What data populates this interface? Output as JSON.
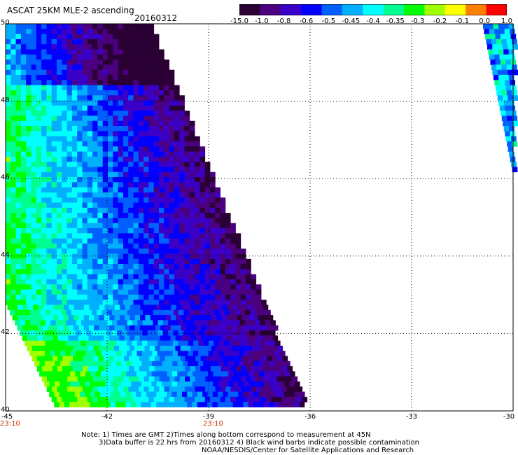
{
  "header": {
    "title": "ASCAT 25KM MLE-2 ascending",
    "date": "20160312"
  },
  "colorbar": {
    "labels": [
      "-15.0",
      "-1.0",
      "-0.8",
      "-0.6",
      "-0.5",
      "-0.45",
      "-0.4",
      "-0.35",
      "-0.3",
      "-0.2",
      "-0.1",
      "0.0",
      "1.0"
    ],
    "colors": [
      "#2a0035",
      "#4b0080",
      "#3a00c8",
      "#0000ff",
      "#0060ff",
      "#00b0ff",
      "#00ffff",
      "#00ff90",
      "#00ff00",
      "#a0ff00",
      "#ffff00",
      "#ff8000",
      "#ff0000"
    ]
  },
  "axes": {
    "lat_ticks": [
      "50",
      "48",
      "46",
      "44",
      "42",
      "40"
    ],
    "lon_ticks": [
      "-45",
      "-42",
      "-39",
      "-36",
      "-33",
      "-30"
    ],
    "lat_range": [
      40,
      50
    ],
    "lon_range": [
      -45,
      -30
    ],
    "time_labels": [
      {
        "text": "23:10",
        "lon": -45
      },
      {
        "text": "23:10",
        "lon": -39
      }
    ]
  },
  "notes": [
    "Note: 1) Times are GMT 2)Times along bottom correspond to measurement at 45N",
    "3)Data buffer is 22 hrs from 20160312 4) Black wind barbs indicate possible contamination",
    "NOAA/NESDIS/Center for Satellite Applications and Research"
  ]
}
